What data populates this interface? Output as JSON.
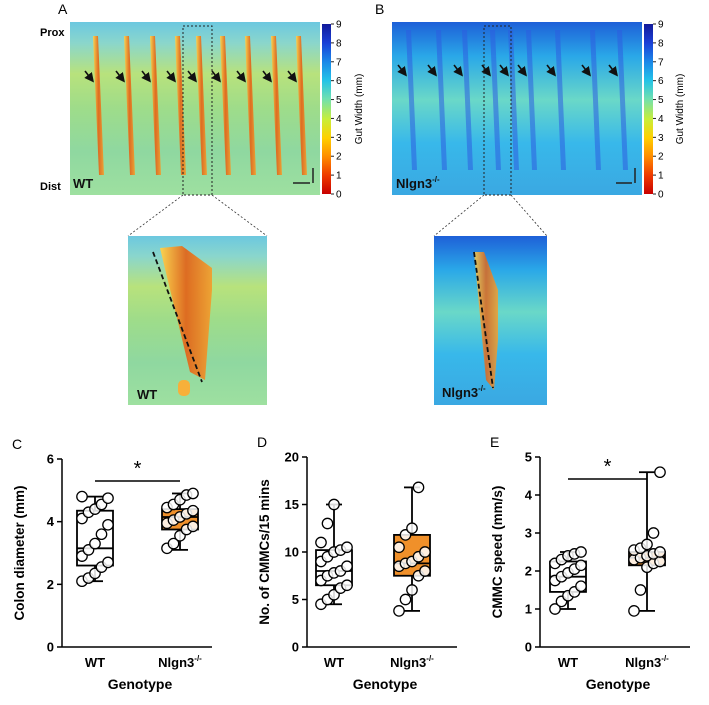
{
  "panel_a": {
    "letter": "A",
    "prox_label": "Prox",
    "dist_label": "Dist",
    "genotype_label": "WT",
    "zoom_label": "WT",
    "colorbar": {
      "label": "Gut Width (mm)",
      "ticks": [
        "0",
        "1",
        "2",
        "3",
        "4",
        "5",
        "6",
        "7",
        "8",
        "9"
      ]
    }
  },
  "panel_b": {
    "letter": "B",
    "genotype_label": "Nlgn3",
    "genotype_sup": "-/-",
    "zoom_label": "Nlgn3",
    "zoom_sup": "-/-",
    "colorbar": {
      "label": "Gut Width (mm)",
      "ticks": [
        "0",
        "1",
        "2",
        "3",
        "4",
        "5",
        "6",
        "7",
        "8",
        "9"
      ]
    }
  },
  "colors": {
    "wt_box_fill": "#ffffff",
    "nlgn3_box_fill": "#f0902a",
    "wt_map_bg": "#9fdc8e",
    "nlgn3_map_bg": "#2f9fe6",
    "band_color": "#e0661c"
  },
  "chart_data": [
    {
      "id": "C",
      "type": "box",
      "panel_letter": "C",
      "title": "",
      "xlabel": "Genotype",
      "ylabel": "Colon diameter (mm)",
      "categories": [
        "WT",
        "Nlgn3"
      ],
      "category_sup": [
        "",
        "-/-"
      ],
      "ylim": [
        0,
        6
      ],
      "yticks": [
        "0",
        "2",
        "4",
        "6"
      ],
      "significance": "*",
      "boxes": [
        {
          "min": 2.1,
          "q1": 2.6,
          "median": 3.15,
          "q3": 4.35,
          "max": 4.8,
          "points": [
            2.1,
            2.2,
            2.35,
            2.55,
            2.7,
            2.9,
            3.1,
            3.3,
            3.6,
            3.9,
            4.1,
            4.3,
            4.4,
            4.55,
            4.75,
            4.8
          ]
        },
        {
          "min": 3.1,
          "q1": 3.75,
          "median": 4.15,
          "q3": 4.4,
          "max": 4.9,
          "points": [
            3.15,
            3.3,
            3.55,
            3.75,
            3.85,
            3.95,
            4.05,
            4.15,
            4.25,
            4.35,
            4.45,
            4.55,
            4.7,
            4.85,
            4.9
          ]
        }
      ]
    },
    {
      "id": "D",
      "type": "box",
      "panel_letter": "D",
      "title": "",
      "xlabel": "Genotype",
      "ylabel": "No. of CMMCs/15 mins",
      "categories": [
        "WT",
        "Nlgn3"
      ],
      "category_sup": [
        "",
        "-/-"
      ],
      "ylim": [
        0,
        20
      ],
      "yticks": [
        "0",
        "5",
        "10",
        "15",
        "20"
      ],
      "significance": "",
      "boxes": [
        {
          "min": 4.5,
          "q1": 6.5,
          "median": 8.0,
          "q3": 10.2,
          "max": 15.0,
          "points": [
            4.5,
            5.0,
            5.5,
            6.2,
            6.5,
            7.0,
            7.5,
            7.8,
            8.0,
            8.5,
            9.0,
            9.5,
            10.0,
            10.2,
            10.5,
            11.0,
            13.0,
            15.0
          ]
        },
        {
          "min": 3.8,
          "q1": 7.5,
          "median": 8.8,
          "q3": 11.8,
          "max": 16.8,
          "points": [
            3.8,
            5.0,
            6.0,
            7.5,
            8.0,
            8.5,
            8.8,
            9.0,
            9.5,
            10.0,
            10.5,
            11.8,
            12.5,
            16.8
          ]
        }
      ]
    },
    {
      "id": "E",
      "type": "box",
      "panel_letter": "E",
      "title": "",
      "xlabel": "Genotype",
      "ylabel": "CMMC speed (mm/s)",
      "categories": [
        "WT",
        "Nlgn3"
      ],
      "category_sup": [
        "",
        "-/-"
      ],
      "ylim": [
        0,
        5
      ],
      "yticks": [
        "0",
        "1",
        "2",
        "3",
        "4",
        "5"
      ],
      "significance": "*",
      "boxes": [
        {
          "min": 1.0,
          "q1": 1.45,
          "median": 1.85,
          "q3": 2.25,
          "max": 2.5,
          "points": [
            1.0,
            1.2,
            1.35,
            1.45,
            1.6,
            1.75,
            1.85,
            1.95,
            2.05,
            2.15,
            2.2,
            2.3,
            2.4,
            2.45,
            2.5
          ]
        },
        {
          "min": 0.95,
          "q1": 2.15,
          "median": 2.35,
          "q3": 2.5,
          "max": 4.6,
          "points": [
            0.95,
            1.5,
            2.1,
            2.2,
            2.25,
            2.3,
            2.35,
            2.4,
            2.45,
            2.5,
            2.55,
            2.6,
            2.7,
            3.0,
            4.6
          ]
        }
      ]
    }
  ]
}
